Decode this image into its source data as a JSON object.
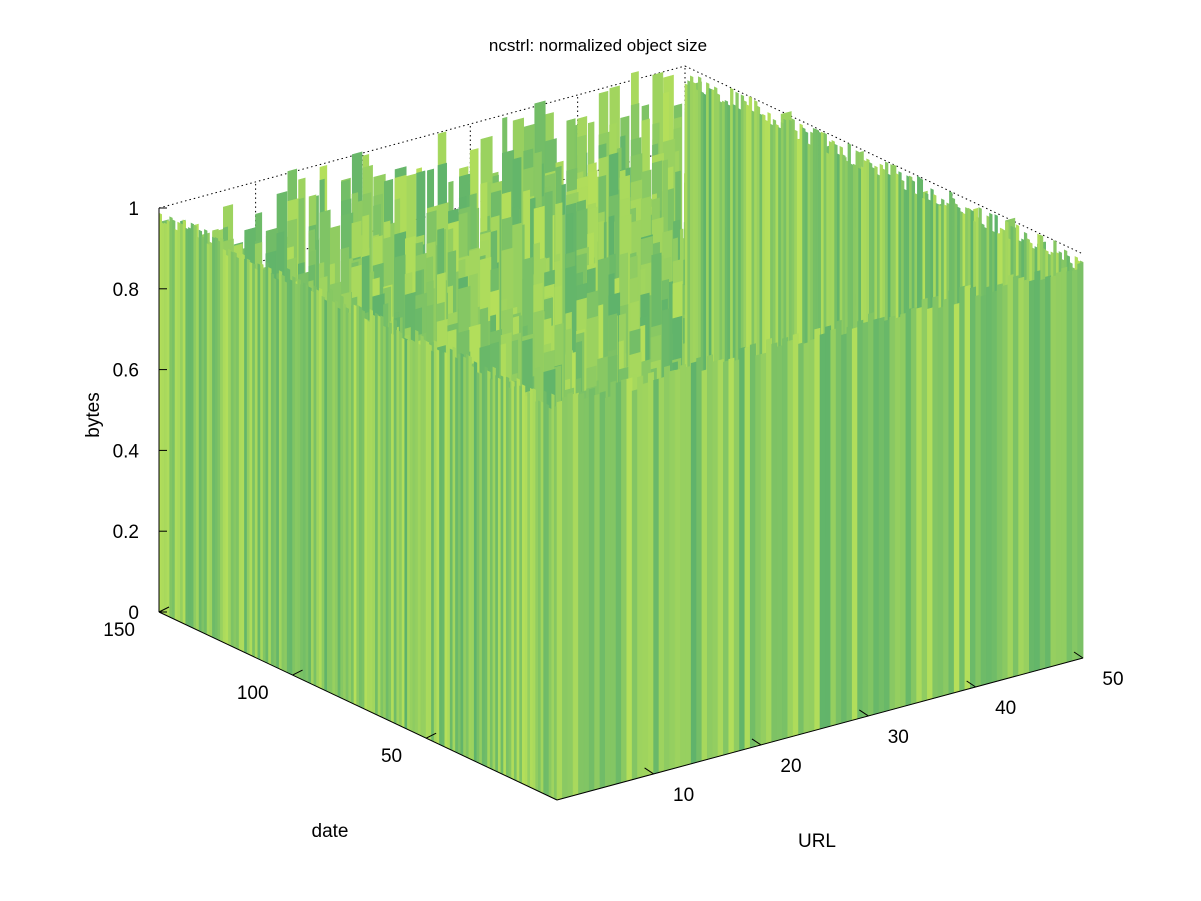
{
  "chart_data": {
    "type": "surface",
    "title": "ncstrl: normalized object size",
    "xlabel": "URL",
    "ylabel": "date",
    "zlabel": "bytes",
    "xlim": [
      1,
      50
    ],
    "ylim": [
      1,
      150
    ],
    "zlim": [
      0,
      1
    ],
    "x_ticks": [
      "10",
      "20",
      "30",
      "40",
      "50"
    ],
    "y_ticks": [
      "50",
      "100",
      "150"
    ],
    "z_ticks": [
      "0",
      "0.2",
      "0.4",
      "0.6",
      "0.8",
      "1"
    ],
    "grid": true,
    "colormap": "summer",
    "colors": {
      "surface_dark": "#5fb36b",
      "surface_light": "#b6e05a",
      "axis": "#000000",
      "background": "#ffffff"
    }
  }
}
